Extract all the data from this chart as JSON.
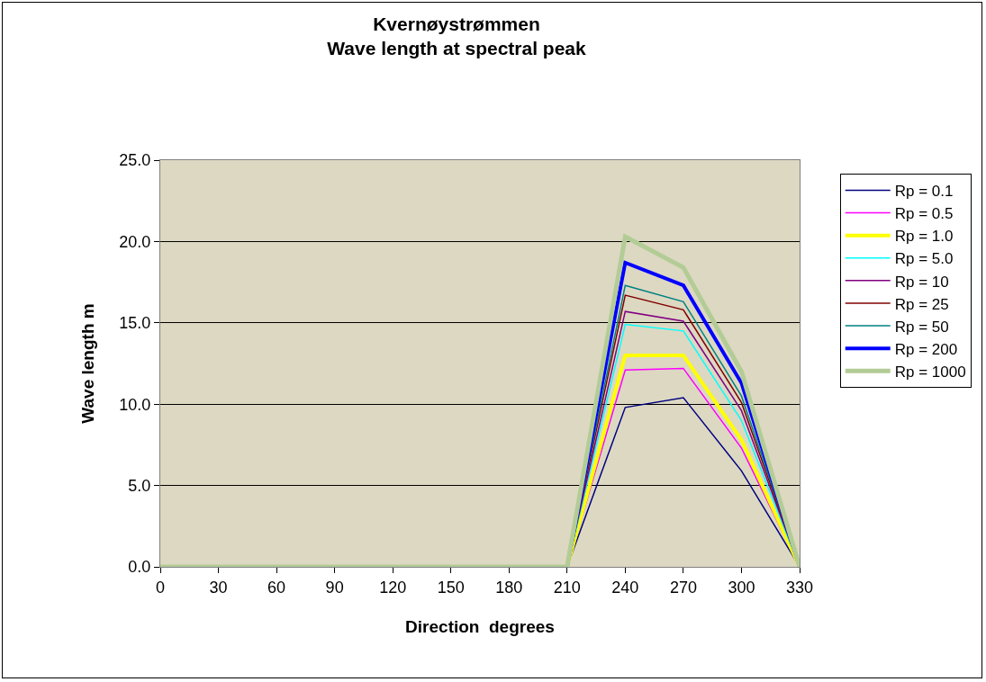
{
  "chart_data": {
    "type": "line",
    "title": "Kvernøystrømmen\nWave length at spectral peak",
    "xlabel": "Direction  degrees",
    "ylabel": "Wave length m",
    "x": [
      0,
      30,
      60,
      90,
      120,
      150,
      180,
      210,
      240,
      270,
      300,
      330
    ],
    "xlim": [
      0,
      330
    ],
    "xticks": [
      0,
      30,
      60,
      90,
      120,
      150,
      180,
      210,
      240,
      270,
      300,
      330
    ],
    "ylim": [
      0,
      25
    ],
    "yticks": [
      {
        "value": 0,
        "label": "0.0"
      },
      {
        "value": 5,
        "label": "5.0"
      },
      {
        "value": 10,
        "label": "10.0"
      },
      {
        "value": 15,
        "label": "15.0"
      },
      {
        "value": 20,
        "label": "20.0"
      },
      {
        "value": 25,
        "label": "25.0"
      }
    ],
    "grid": "y",
    "legend": "right",
    "marker": "none",
    "line_style": "solid",
    "series": [
      {
        "name": "Rp = 0.1",
        "color": "#000080",
        "values": [
          null,
          null,
          null,
          null,
          null,
          null,
          null,
          0,
          9.8,
          10.4,
          5.9,
          0
        ]
      },
      {
        "name": "Rp = 0.5",
        "color": "#ff00ff",
        "values": [
          null,
          null,
          null,
          null,
          null,
          null,
          null,
          0,
          12.1,
          12.2,
          7.3,
          0
        ]
      },
      {
        "name": "Rp = 1.0",
        "color": "#ffff00",
        "values": [
          null,
          null,
          null,
          null,
          null,
          null,
          null,
          0,
          13.0,
          13.0,
          7.8,
          0
        ]
      },
      {
        "name": "Rp = 5.0",
        "color": "#00ffff",
        "values": [
          null,
          null,
          null,
          null,
          null,
          null,
          null,
          0,
          14.9,
          14.5,
          9.0,
          0
        ]
      },
      {
        "name": "Rp = 10",
        "color": "#800080",
        "values": [
          null,
          null,
          null,
          null,
          null,
          null,
          null,
          0,
          15.7,
          15.1,
          9.6,
          0
        ]
      },
      {
        "name": "Rp = 25",
        "color": "#800000",
        "values": [
          null,
          null,
          null,
          null,
          null,
          null,
          null,
          0,
          16.7,
          15.8,
          10.1,
          0
        ]
      },
      {
        "name": "Rp = 50",
        "color": "#008080",
        "values": [
          null,
          null,
          null,
          null,
          null,
          null,
          null,
          0,
          17.3,
          16.3,
          10.5,
          0
        ]
      },
      {
        "name": "Rp = 200",
        "color": "#0000ff",
        "values": [
          null,
          null,
          null,
          null,
          null,
          null,
          null,
          0,
          18.7,
          17.3,
          11.3,
          0
        ]
      },
      {
        "name": "Rp = 1000",
        "color": "#b3cc96",
        "values": [
          0,
          0,
          0,
          0,
          0,
          0,
          0,
          0,
          20.3,
          18.4,
          12.0,
          0
        ]
      }
    ]
  }
}
